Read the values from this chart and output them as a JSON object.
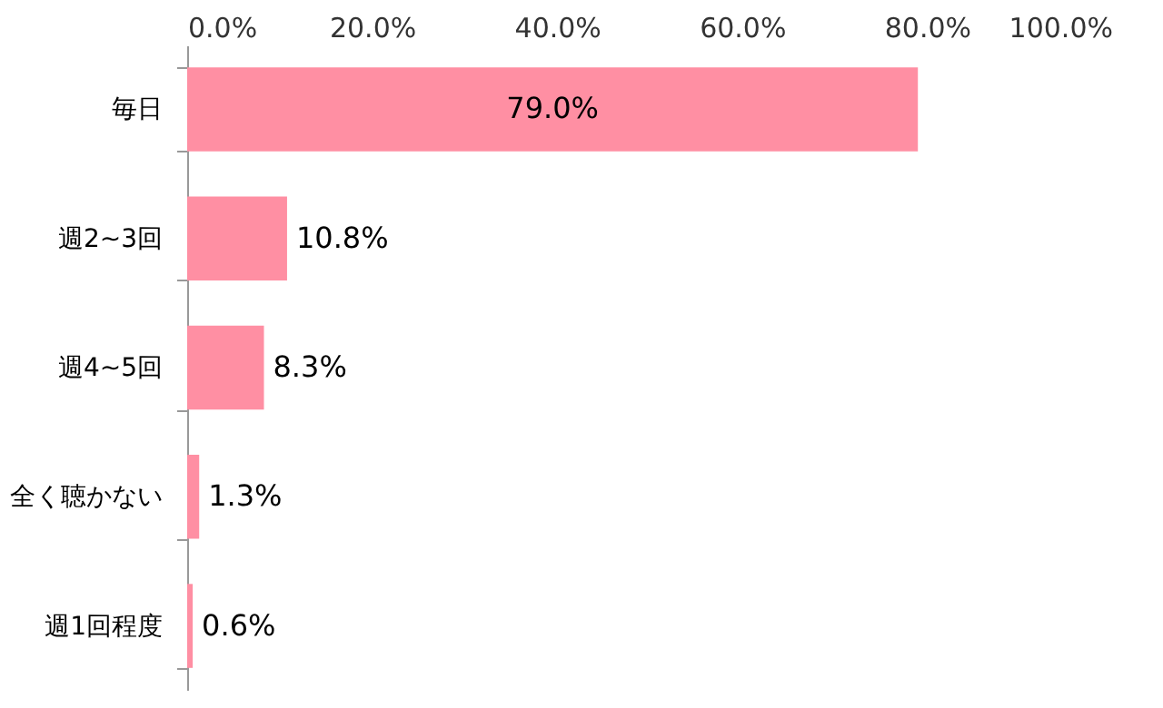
{
  "chart_data": {
    "type": "bar",
    "orientation": "horizontal",
    "categories": [
      "毎日",
      "週2~3回",
      "週4~5回",
      "全く聴かない",
      "週1回程度"
    ],
    "values": [
      79.0,
      10.8,
      8.3,
      1.3,
      0.6
    ],
    "color": "#ff8fa3",
    "value_labels": [
      "79.0%",
      "10.8%",
      "8.3%",
      "1.3%",
      "0.6%"
    ],
    "xlim": [
      0,
      100
    ],
    "xticks": [
      {
        "value": 0,
        "label": "0.0%"
      },
      {
        "value": 20,
        "label": "20.0%"
      },
      {
        "value": 40,
        "label": "40.0%"
      },
      {
        "value": 60,
        "label": "60.0%"
      },
      {
        "value": 80,
        "label": "80.0%"
      },
      {
        "value": 100,
        "label": "100.0%"
      }
    ],
    "grid": false
  }
}
